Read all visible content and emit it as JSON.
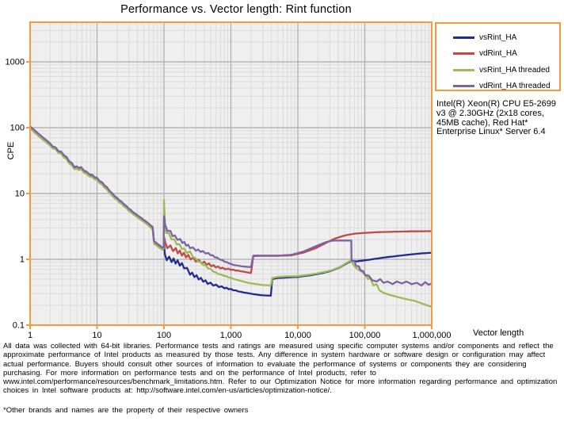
{
  "system_note": "Intel(R) Xeon(R) CPU E5-2699 v3 @ 2.30GHz (2x18 cores, 45MB cache), Red Hat* Enterprise Linux* Server 6.4",
  "footer": {
    "disclaimer": "All data was collected with 64-bit libraries. Performance tests and ratings are measured using specific computer systems and/or components and reflect the approximate performance of Intel products as measured by those tests. Any difference in system hardware or software design or configuration may affect actual performance. Buyers should consult other sources of information to evaluate the performance of systems or components they are considering purchasing. For more information on performance tests and on the performance of Intel products, refer to www.intel.com/performance/resources/benchmark_limitations.htm.  Refer to our Optimization Notice for more information regarding performance and optimization choices in Intel software products at: http://software.intel.com/en-us/articles/optimization-notice/.",
    "trademark": "*Other brands and names are the property of their respective owners"
  },
  "colors": {
    "axis_orange": "#F89A3C",
    "plot_bg": "#F0EFEF",
    "grid_minor": "#DBDBDB",
    "grid_major": "#ABABAB",
    "text": "#000000"
  },
  "chart_data": {
    "type": "line",
    "title": "Performance vs. Vector length: Rint function",
    "xlabel": "Vector length",
    "ylabel": "CPE",
    "x_scale": "log",
    "y_scale": "log",
    "xlim": [
      1,
      1000000
    ],
    "ylim": [
      0.1,
      4000
    ],
    "grid": true,
    "legend_position": "top-right",
    "x_ticks": [
      "1",
      "10",
      "100",
      "1,000",
      "10,000",
      "100,000",
      "1,000,000"
    ],
    "x_tick_values": [
      1,
      10,
      100,
      1000,
      10000,
      100000,
      1000000
    ],
    "y_ticks": [
      "1000",
      "100",
      "10",
      "1",
      "0.1"
    ],
    "y_tick_values": [
      1000,
      100,
      10,
      1,
      0.1
    ],
    "series": [
      {
        "name": "vsRint_HA",
        "color": "#232C8C",
        "jitter": [
          {
            "from": 2,
            "to": 60,
            "amp": 0.03
          },
          {
            "from": 100,
            "to": 1600,
            "amp": 0.09
          }
        ],
        "points": [
          [
            1,
            100
          ],
          [
            1.35,
            76
          ],
          [
            1.8,
            60
          ],
          [
            2.4,
            47
          ],
          [
            3.2,
            37
          ],
          [
            4.2,
            27
          ],
          [
            4.6,
            24.5
          ],
          [
            5.8,
            23.5
          ],
          [
            7,
            20
          ],
          [
            8.5,
            18
          ],
          [
            10,
            16.3
          ],
          [
            12,
            13.8
          ],
          [
            14,
            11.8
          ],
          [
            17,
            9.4
          ],
          [
            20,
            8.1
          ],
          [
            25,
            6.7
          ],
          [
            30,
            5.6
          ],
          [
            37,
            4.7
          ],
          [
            45,
            4.1
          ],
          [
            55,
            3.55
          ],
          [
            63,
            3.15
          ],
          [
            68,
            2.9
          ],
          [
            71,
            1.78
          ],
          [
            80,
            1.62
          ],
          [
            90,
            1.48
          ],
          [
            96,
            1.4
          ],
          [
            99,
            1.4
          ],
          [
            100,
            1.95
          ],
          [
            103,
            1.1
          ],
          [
            110,
            1.05
          ],
          [
            130,
            0.98
          ],
          [
            160,
            0.9
          ],
          [
            200,
            0.78
          ],
          [
            245,
            0.62
          ],
          [
            330,
            0.52
          ],
          [
            450,
            0.44
          ],
          [
            600,
            0.4
          ],
          [
            800,
            0.37
          ],
          [
            1000,
            0.35
          ],
          [
            1400,
            0.32
          ],
          [
            2000,
            0.3
          ],
          [
            2800,
            0.285
          ],
          [
            3950,
            0.28
          ],
          [
            4150,
            0.5
          ],
          [
            5000,
            0.52
          ],
          [
            7000,
            0.53
          ],
          [
            10000,
            0.54
          ],
          [
            15000,
            0.57
          ],
          [
            22000,
            0.61
          ],
          [
            30000,
            0.66
          ],
          [
            42000,
            0.75
          ],
          [
            55000,
            0.88
          ],
          [
            65000,
            0.95
          ],
          [
            75000,
            0.93
          ],
          [
            90000,
            0.95
          ],
          [
            120000,
            0.99
          ],
          [
            200000,
            1.07
          ],
          [
            400000,
            1.16
          ],
          [
            700000,
            1.23
          ],
          [
            1000000,
            1.26
          ]
        ]
      },
      {
        "name": "vdRint_HA",
        "color": "#BE4B48",
        "jitter": [
          {
            "from": 2,
            "to": 60,
            "amp": 0.03
          },
          {
            "from": 100,
            "to": 1600,
            "amp": 0.09
          }
        ],
        "points": [
          [
            1,
            102
          ],
          [
            1.35,
            78
          ],
          [
            1.8,
            61
          ],
          [
            2.4,
            48
          ],
          [
            3.2,
            38
          ],
          [
            4.2,
            27.6
          ],
          [
            4.6,
            25
          ],
          [
            5.8,
            24
          ],
          [
            7,
            20.5
          ],
          [
            8.5,
            18.4
          ],
          [
            10,
            16.6
          ],
          [
            12,
            14.1
          ],
          [
            14,
            12.1
          ],
          [
            17,
            9.6
          ],
          [
            20,
            8.3
          ],
          [
            25,
            6.9
          ],
          [
            30,
            5.75
          ],
          [
            37,
            4.8
          ],
          [
            45,
            4.2
          ],
          [
            55,
            3.6
          ],
          [
            63,
            3.2
          ],
          [
            68,
            2.95
          ],
          [
            71,
            1.82
          ],
          [
            80,
            1.66
          ],
          [
            90,
            1.52
          ],
          [
            96,
            1.45
          ],
          [
            99,
            1.5
          ],
          [
            100,
            2.4
          ],
          [
            104,
            1.7
          ],
          [
            112,
            1.6
          ],
          [
            125,
            1.5
          ],
          [
            150,
            1.38
          ],
          [
            185,
            1.22
          ],
          [
            230,
            1.1
          ],
          [
            300,
            0.97
          ],
          [
            400,
            0.88
          ],
          [
            550,
            0.79
          ],
          [
            750,
            0.73
          ],
          [
            1000,
            0.7
          ],
          [
            1400,
            0.66
          ],
          [
            2000,
            0.62
          ],
          [
            2160,
            1.12
          ],
          [
            3000,
            1.13
          ],
          [
            5000,
            1.13
          ],
          [
            8000,
            1.15
          ],
          [
            12000,
            1.26
          ],
          [
            18000,
            1.46
          ],
          [
            26000,
            1.76
          ],
          [
            35000,
            2.05
          ],
          [
            50000,
            2.3
          ],
          [
            70000,
            2.45
          ],
          [
            100000,
            2.52
          ],
          [
            150000,
            2.58
          ],
          [
            250000,
            2.62
          ],
          [
            500000,
            2.66
          ],
          [
            1000000,
            2.68
          ]
        ]
      },
      {
        "name": "vsRint_HA threaded",
        "color": "#9BBB59",
        "jitter": [
          {
            "from": 2,
            "to": 60,
            "amp": 0.03
          },
          {
            "from": 100,
            "to": 1200,
            "amp": 0.06
          }
        ],
        "points": [
          [
            1,
            97
          ],
          [
            1.35,
            74
          ],
          [
            1.8,
            58
          ],
          [
            2.4,
            46
          ],
          [
            3.2,
            36
          ],
          [
            4.2,
            26.3
          ],
          [
            4.6,
            23.8
          ],
          [
            5.8,
            22.8
          ],
          [
            7,
            19.4
          ],
          [
            8.5,
            17.5
          ],
          [
            10,
            15.8
          ],
          [
            12,
            13.4
          ],
          [
            14,
            11.5
          ],
          [
            17,
            9.1
          ],
          [
            20,
            7.9
          ],
          [
            25,
            6.5
          ],
          [
            30,
            5.45
          ],
          [
            37,
            4.6
          ],
          [
            45,
            4
          ],
          [
            55,
            3.45
          ],
          [
            63,
            3.05
          ],
          [
            68,
            2.85
          ],
          [
            71,
            1.73
          ],
          [
            80,
            1.58
          ],
          [
            90,
            1.44
          ],
          [
            96,
            1.4
          ],
          [
            99,
            1.45
          ],
          [
            100,
            8.4
          ],
          [
            104,
            3
          ],
          [
            108,
            2.65
          ],
          [
            130,
            2.1
          ],
          [
            170,
            1.62
          ],
          [
            220,
            1.3
          ],
          [
            245,
            1.27
          ],
          [
            300,
            1
          ],
          [
            420,
            0.79
          ],
          [
            600,
            0.62
          ],
          [
            850,
            0.55
          ],
          [
            1200,
            0.49
          ],
          [
            1800,
            0.44
          ],
          [
            2800,
            0.41
          ],
          [
            3950,
            0.4
          ],
          [
            4150,
            0.52
          ],
          [
            5000,
            0.54
          ],
          [
            7000,
            0.55
          ],
          [
            10000,
            0.555
          ],
          [
            15000,
            0.585
          ],
          [
            22000,
            0.625
          ],
          [
            30000,
            0.67
          ],
          [
            42000,
            0.76
          ],
          [
            55000,
            0.9
          ],
          [
            62000,
            0.96
          ],
          [
            68000,
            0.82
          ],
          [
            76000,
            0.72
          ],
          [
            88000,
            0.66
          ],
          [
            100000,
            0.6
          ],
          [
            112000,
            0.5
          ],
          [
            120000,
            0.52
          ],
          [
            135000,
            0.4
          ],
          [
            150000,
            0.42
          ],
          [
            165000,
            0.34
          ],
          [
            190000,
            0.31
          ],
          [
            230000,
            0.29
          ],
          [
            300000,
            0.27
          ],
          [
            400000,
            0.25
          ],
          [
            550000,
            0.235
          ],
          [
            700000,
            0.215
          ],
          [
            850000,
            0.2
          ],
          [
            1000000,
            0.19
          ]
        ]
      },
      {
        "name": "vdRint_HA threaded",
        "color": "#7E62A1",
        "jitter": [
          {
            "from": 2,
            "to": 60,
            "amp": 0.03
          },
          {
            "from": 100,
            "to": 1200,
            "amp": 0.06
          }
        ],
        "points": [
          [
            1,
            105
          ],
          [
            1.35,
            80
          ],
          [
            1.8,
            63
          ],
          [
            2.4,
            49
          ],
          [
            3.2,
            39
          ],
          [
            4.2,
            28.4
          ],
          [
            4.6,
            25.7
          ],
          [
            5.8,
            24.7
          ],
          [
            7,
            21
          ],
          [
            8.5,
            18.9
          ],
          [
            10,
            17.1
          ],
          [
            12,
            14.5
          ],
          [
            14,
            12.4
          ],
          [
            17,
            9.9
          ],
          [
            20,
            8.5
          ],
          [
            25,
            7
          ],
          [
            30,
            5.9
          ],
          [
            37,
            4.95
          ],
          [
            45,
            4.3
          ],
          [
            55,
            3.7
          ],
          [
            63,
            3.3
          ],
          [
            68,
            3.1
          ],
          [
            71,
            1.9
          ],
          [
            80,
            1.72
          ],
          [
            90,
            1.57
          ],
          [
            96,
            1.5
          ],
          [
            99,
            1.55
          ],
          [
            100,
            4.8
          ],
          [
            104,
            3.2
          ],
          [
            112,
            2.85
          ],
          [
            125,
            2.55
          ],
          [
            145,
            2.2
          ],
          [
            175,
            1.95
          ],
          [
            215,
            1.68
          ],
          [
            245,
            1.53
          ],
          [
            300,
            1.4
          ],
          [
            380,
            1.3
          ],
          [
            460,
            1.22
          ],
          [
            620,
            1.05
          ],
          [
            820,
            0.92
          ],
          [
            1100,
            0.82
          ],
          [
            1500,
            0.78
          ],
          [
            2000,
            0.76
          ],
          [
            2160,
            1.14
          ],
          [
            3000,
            1.14
          ],
          [
            5000,
            1.14
          ],
          [
            8000,
            1.17
          ],
          [
            12000,
            1.31
          ],
          [
            18000,
            1.56
          ],
          [
            26000,
            1.82
          ],
          [
            33000,
            1.92
          ],
          [
            45000,
            1.93
          ],
          [
            63000,
            1.93
          ],
          [
            63500,
            0.95
          ],
          [
            70000,
            0.93
          ],
          [
            74000,
            0.8
          ],
          [
            82000,
            0.78
          ],
          [
            86000,
            0.68
          ],
          [
            95000,
            0.66
          ],
          [
            100000,
            0.58
          ],
          [
            115000,
            0.56
          ],
          [
            130000,
            0.48
          ],
          [
            150000,
            0.46
          ],
          [
            170000,
            0.5
          ],
          [
            190000,
            0.44
          ],
          [
            220000,
            0.46
          ],
          [
            260000,
            0.42
          ],
          [
            300000,
            0.46
          ],
          [
            360000,
            0.43
          ],
          [
            420000,
            0.46
          ],
          [
            500000,
            0.42
          ],
          [
            600000,
            0.44
          ],
          [
            700000,
            0.4
          ],
          [
            800000,
            0.45
          ],
          [
            900000,
            0.41
          ],
          [
            1000000,
            0.43
          ]
        ]
      }
    ]
  }
}
